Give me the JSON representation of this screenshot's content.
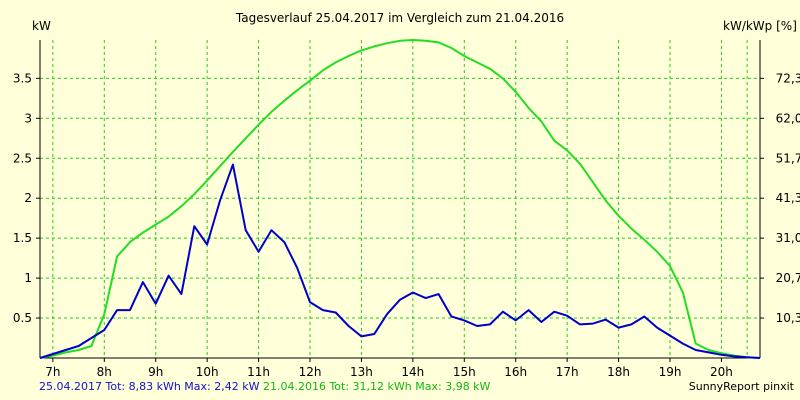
{
  "chart_data": {
    "type": "line",
    "title": "Tagesverlauf 25.04.2017 im Vergleich zum 21.04.2016",
    "ylabel": "kW",
    "ylabel_right": "kW/kWp [%]",
    "xlim": [
      6.75,
      20.75
    ],
    "ylim": [
      0,
      3.98
    ],
    "x_ticks": [
      7,
      8,
      9,
      10,
      11,
      12,
      13,
      14,
      15,
      16,
      17,
      18,
      19,
      20
    ],
    "x_tick_labels": [
      "7h",
      "8h",
      "9h",
      "10h",
      "11h",
      "12h",
      "13h",
      "14h",
      "15h",
      "16h",
      "17h",
      "18h",
      "19h",
      "20h"
    ],
    "y_ticks": [
      0.5,
      1,
      1.5,
      2,
      2.5,
      3,
      3.5
    ],
    "y_tick_labels": [
      "0.5",
      "1",
      "1.5",
      "2",
      "2.5",
      "3",
      "3.5"
    ],
    "y_right_ticks": [
      0.5,
      1,
      1.5,
      2,
      2.5,
      3,
      3.5
    ],
    "y_right_tick_labels": [
      "10,3",
      "20,7",
      "31,0",
      "41,3",
      "51,7",
      "62,0",
      "72,3"
    ],
    "x_grid_extra": [
      20.5
    ],
    "grid": true,
    "series": [
      {
        "name": "25.04.2017",
        "color": "#0000cc",
        "x": [
          6.75,
          7.0,
          7.25,
          7.5,
          7.75,
          8.0,
          8.25,
          8.5,
          8.75,
          9.0,
          9.25,
          9.5,
          9.75,
          10.0,
          10.25,
          10.5,
          10.75,
          11.0,
          11.25,
          11.5,
          11.75,
          12.0,
          12.25,
          12.5,
          12.75,
          13.0,
          13.25,
          13.5,
          13.75,
          14.0,
          14.25,
          14.5,
          14.75,
          15.0,
          15.25,
          15.5,
          15.75,
          16.0,
          16.25,
          16.5,
          16.75,
          17.0,
          17.25,
          17.5,
          17.75,
          18.0,
          18.25,
          18.5,
          18.75,
          19.0,
          19.25,
          19.5,
          19.75,
          20.0,
          20.25,
          20.5,
          20.75
        ],
        "y": [
          0.0,
          0.05,
          0.1,
          0.15,
          0.25,
          0.35,
          0.6,
          0.6,
          0.95,
          0.68,
          1.03,
          0.8,
          1.65,
          1.42,
          1.97,
          2.42,
          1.6,
          1.33,
          1.6,
          1.45,
          1.13,
          0.7,
          0.6,
          0.57,
          0.4,
          0.27,
          0.3,
          0.55,
          0.73,
          0.82,
          0.75,
          0.8,
          0.52,
          0.47,
          0.4,
          0.42,
          0.58,
          0.47,
          0.6,
          0.45,
          0.58,
          0.53,
          0.42,
          0.43,
          0.48,
          0.38,
          0.42,
          0.52,
          0.38,
          0.28,
          0.18,
          0.1,
          0.07,
          0.04,
          0.02,
          0.01,
          0.0
        ]
      },
      {
        "name": "21.04.2016",
        "color": "#22dd22",
        "x": [
          6.75,
          7.0,
          7.25,
          7.5,
          7.75,
          8.0,
          8.25,
          8.5,
          8.75,
          9.0,
          9.25,
          9.5,
          9.75,
          10.0,
          10.25,
          10.5,
          10.75,
          11.0,
          11.25,
          11.5,
          11.75,
          12.0,
          12.25,
          12.5,
          12.75,
          13.0,
          13.25,
          13.5,
          13.75,
          14.0,
          14.25,
          14.5,
          14.75,
          15.0,
          15.25,
          15.5,
          15.75,
          16.0,
          16.25,
          16.5,
          16.75,
          17.0,
          17.25,
          17.5,
          17.75,
          18.0,
          18.25,
          18.5,
          18.75,
          19.0,
          19.25,
          19.5,
          19.75,
          20.0,
          20.25,
          20.5,
          20.75
        ],
        "y": [
          0.0,
          0.03,
          0.07,
          0.1,
          0.15,
          0.55,
          1.27,
          1.45,
          1.57,
          1.67,
          1.77,
          1.9,
          2.05,
          2.22,
          2.4,
          2.58,
          2.75,
          2.92,
          3.08,
          3.22,
          3.35,
          3.47,
          3.6,
          3.7,
          3.78,
          3.85,
          3.9,
          3.94,
          3.97,
          3.98,
          3.97,
          3.95,
          3.88,
          3.78,
          3.7,
          3.62,
          3.5,
          3.33,
          3.13,
          2.96,
          2.72,
          2.6,
          2.43,
          2.2,
          1.97,
          1.78,
          1.62,
          1.48,
          1.33,
          1.15,
          0.82,
          0.18,
          0.1,
          0.06,
          0.03,
          0.01,
          0.0
        ]
      }
    ]
  },
  "footer": {
    "series1_date": "25.04.2017",
    "series1_stats": "Tot: 8,83 kWh Max: 2,42 kW",
    "series2_date": "21.04.2016",
    "series2_stats": "Tot: 31,12 kWh Max: 3,98 kW",
    "credit": "SunnyReport pinxit"
  }
}
